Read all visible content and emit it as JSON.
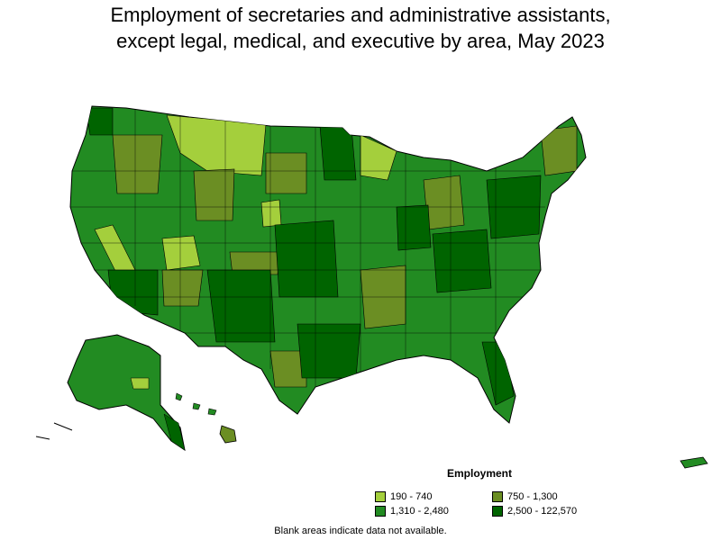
{
  "title_line1": "Employment of secretaries and administrative assistants,",
  "title_line2": "except legal, medical, and executive by area, May 2023",
  "legend": {
    "title": "Employment",
    "items": [
      {
        "label": "190 - 740",
        "color": "#a4cf3c"
      },
      {
        "label": "750 - 1,300",
        "color": "#6b8e23"
      },
      {
        "label": "1,310 - 2,480",
        "color": "#228b22"
      },
      {
        "label": "2,500 - 122,570",
        "color": "#006400"
      }
    ]
  },
  "footnote": "Blank areas indicate data not available."
}
